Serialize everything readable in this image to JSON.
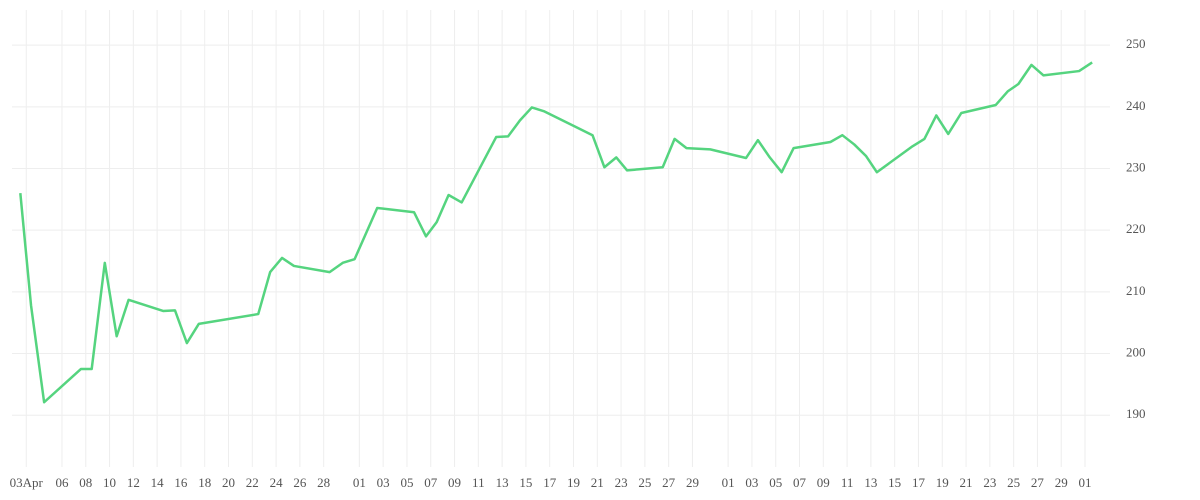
{
  "chart_data": {
    "type": "line",
    "x": [
      -0.5,
      0.4,
      1.5,
      4.6,
      5.5,
      6.6,
      7.6,
      8.6,
      11.5,
      12.5,
      13.5,
      14.5,
      19.5,
      20.5,
      21.5,
      22.5,
      25.5,
      26.6,
      27.6,
      29.5,
      32.6,
      33.6,
      34.5,
      35.5,
      36.6,
      39.5,
      40.5,
      41.5,
      42.5,
      43.5,
      47.6,
      48.6,
      49.6,
      50.5,
      53.5,
      54.5,
      55.5,
      57.5,
      60.5,
      61.5,
      62.5,
      63.5,
      64.5,
      67.6,
      68.6,
      69.6,
      70.6,
      71.5,
      74.5,
      75.5,
      76.5,
      77.5,
      78.6,
      81.5,
      82.5,
      83.4,
      84.5,
      85.5,
      88.5,
      89.6
    ],
    "series": [
      {
        "color": "#55d47f",
        "values": [
          226.0,
          207.8,
          192.1,
          197.5,
          197.5,
          214.7,
          202.8,
          208.7,
          206.9,
          207.0,
          201.7,
          204.8,
          206.4,
          213.2,
          215.5,
          214.2,
          213.2,
          214.7,
          215.3,
          223.6,
          222.9,
          219.0,
          221.3,
          225.7,
          224.5,
          235.1,
          235.2,
          237.8,
          239.9,
          239.3,
          235.4,
          230.2,
          231.8,
          229.7,
          230.2,
          234.8,
          233.3,
          233.1,
          231.7,
          234.6,
          231.8,
          229.4,
          233.3,
          234.3,
          235.4,
          233.9,
          232.0,
          229.4,
          233.6,
          234.8,
          238.6,
          235.6,
          239.0,
          240.3,
          242.5,
          243.7,
          246.8,
          245.1,
          245.8,
          247.2
        ]
      }
    ],
    "xlim": [
      -1.2,
      91.1
    ],
    "xticks": [
      {
        "value": 0,
        "label": "03Apr"
      },
      {
        "value": 3,
        "label": "06"
      },
      {
        "value": 5,
        "label": "08"
      },
      {
        "value": 7,
        "label": "10"
      },
      {
        "value": 9,
        "label": "12"
      },
      {
        "value": 11,
        "label": "14"
      },
      {
        "value": 13,
        "label": "16"
      },
      {
        "value": 15,
        "label": "18"
      },
      {
        "value": 17,
        "label": "20"
      },
      {
        "value": 19,
        "label": "22"
      },
      {
        "value": 21,
        "label": "24"
      },
      {
        "value": 23,
        "label": "26"
      },
      {
        "value": 25,
        "label": "28"
      },
      {
        "value": 28,
        "label": "01"
      },
      {
        "value": 30,
        "label": "03"
      },
      {
        "value": 32,
        "label": "05"
      },
      {
        "value": 34,
        "label": "07"
      },
      {
        "value": 36,
        "label": "09"
      },
      {
        "value": 38,
        "label": "11"
      },
      {
        "value": 40,
        "label": "13"
      },
      {
        "value": 42,
        "label": "15"
      },
      {
        "value": 44,
        "label": "17"
      },
      {
        "value": 46,
        "label": "19"
      },
      {
        "value": 48,
        "label": "21"
      },
      {
        "value": 50,
        "label": "23"
      },
      {
        "value": 52,
        "label": "25"
      },
      {
        "value": 54,
        "label": "27"
      },
      {
        "value": 56,
        "label": "29"
      },
      {
        "value": 59,
        "label": "01"
      },
      {
        "value": 61,
        "label": "03"
      },
      {
        "value": 63,
        "label": "05"
      },
      {
        "value": 65,
        "label": "07"
      },
      {
        "value": 67,
        "label": "09"
      },
      {
        "value": 69,
        "label": "11"
      },
      {
        "value": 71,
        "label": "13"
      },
      {
        "value": 73,
        "label": "15"
      },
      {
        "value": 75,
        "label": "17"
      },
      {
        "value": 77,
        "label": "19"
      },
      {
        "value": 79,
        "label": "21"
      },
      {
        "value": 81,
        "label": "23"
      },
      {
        "value": 83,
        "label": "25"
      },
      {
        "value": 85,
        "label": "27"
      },
      {
        "value": 87,
        "label": "29"
      },
      {
        "value": 89,
        "label": "01"
      }
    ],
    "ylim": [
      181.6,
      255.7
    ],
    "yticks": [
      190,
      200,
      210,
      220,
      230,
      240,
      250
    ],
    "y_axis_side": "right",
    "grid": true
  }
}
